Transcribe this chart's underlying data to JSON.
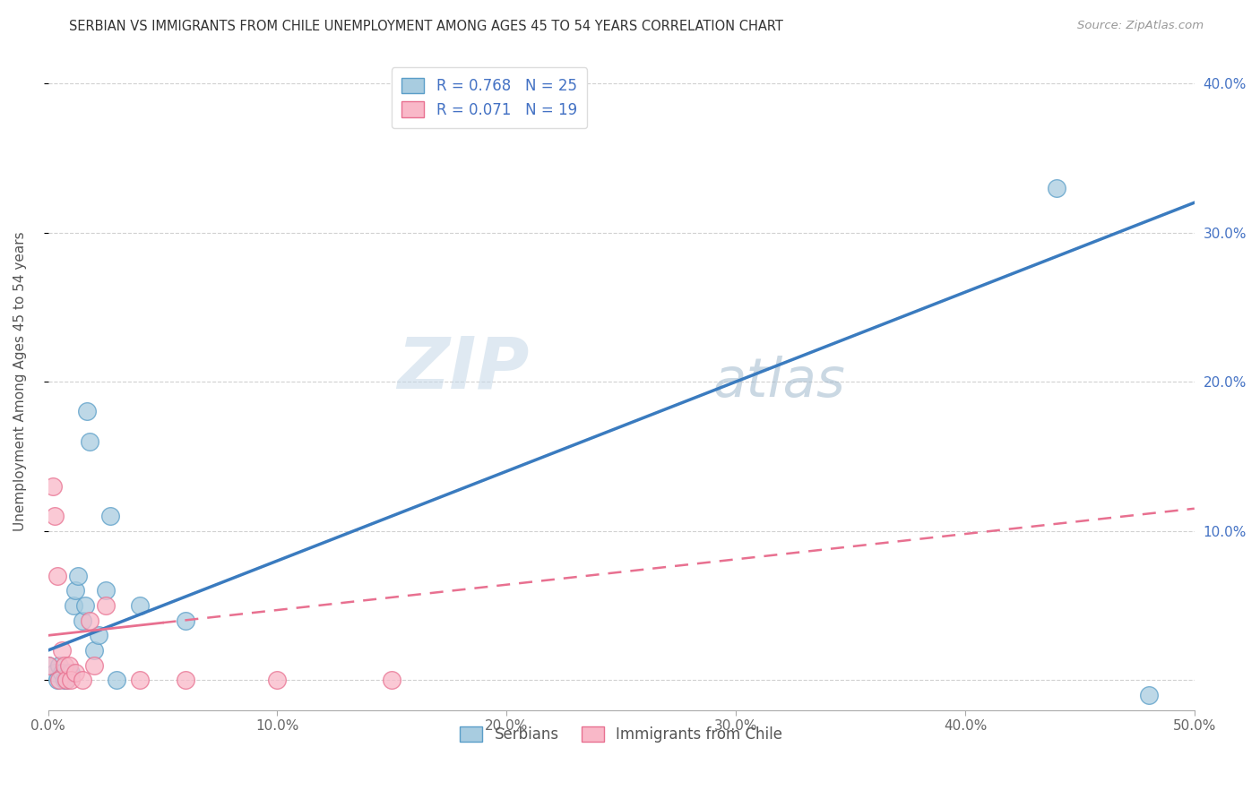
{
  "title": "SERBIAN VS IMMIGRANTS FROM CHILE UNEMPLOYMENT AMONG AGES 45 TO 54 YEARS CORRELATION CHART",
  "source": "Source: ZipAtlas.com",
  "ylabel": "Unemployment Among Ages 45 to 54 years",
  "x_min": 0.0,
  "x_max": 0.5,
  "y_min": -0.02,
  "y_max": 0.42,
  "x_ticks": [
    0.0,
    0.1,
    0.2,
    0.3,
    0.4,
    0.5
  ],
  "x_tick_labels": [
    "0.0%",
    "10.0%",
    "20.0%",
    "30.0%",
    "40.0%",
    "50.0%"
  ],
  "y_ticks": [
    0.0,
    0.1,
    0.2,
    0.3,
    0.4
  ],
  "y_tick_labels_right": [
    "",
    "10.0%",
    "20.0%",
    "30.0%",
    "40.0%"
  ],
  "legend_r1": "R = 0.768",
  "legend_n1": "N = 25",
  "legend_r2": "R = 0.071",
  "legend_n2": "N = 19",
  "serbian_color": "#a8cce0",
  "chilean_color": "#f9b8c8",
  "serbian_edge": "#5a9ec8",
  "chilean_edge": "#e87090",
  "trendline1_color": "#3a7bbf",
  "trendline2_color": "#e87090",
  "watermark_zip": "ZIP",
  "watermark_atlas": "atlas",
  "serbian_x": [
    0.0,
    0.003,
    0.004,
    0.005,
    0.006,
    0.007,
    0.008,
    0.009,
    0.01,
    0.011,
    0.012,
    0.013,
    0.015,
    0.016,
    0.017,
    0.018,
    0.02,
    0.022,
    0.025,
    0.027,
    0.03,
    0.04,
    0.06,
    0.44,
    0.48
  ],
  "serbian_y": [
    0.01,
    0.005,
    0.0,
    0.01,
    0.005,
    0.0,
    0.0,
    0.005,
    0.005,
    0.05,
    0.06,
    0.07,
    0.04,
    0.05,
    0.18,
    0.16,
    0.02,
    0.03,
    0.06,
    0.11,
    0.0,
    0.05,
    0.04,
    0.33,
    -0.01
  ],
  "chilean_x": [
    0.0,
    0.002,
    0.003,
    0.004,
    0.005,
    0.006,
    0.007,
    0.008,
    0.009,
    0.01,
    0.012,
    0.015,
    0.018,
    0.02,
    0.025,
    0.04,
    0.06,
    0.1,
    0.15
  ],
  "chilean_y": [
    0.01,
    0.13,
    0.11,
    0.07,
    0.0,
    0.02,
    0.01,
    0.0,
    0.01,
    0.0,
    0.005,
    0.0,
    0.04,
    0.01,
    0.05,
    0.0,
    0.0,
    0.0,
    0.0
  ],
  "trendline1_x0": 0.0,
  "trendline1_y0": 0.02,
  "trendline1_x1": 0.5,
  "trendline1_y1": 0.32,
  "trendline2_x0": 0.0,
  "trendline2_y0": 0.03,
  "trendline2_x1": 0.5,
  "trendline2_y1": 0.115
}
